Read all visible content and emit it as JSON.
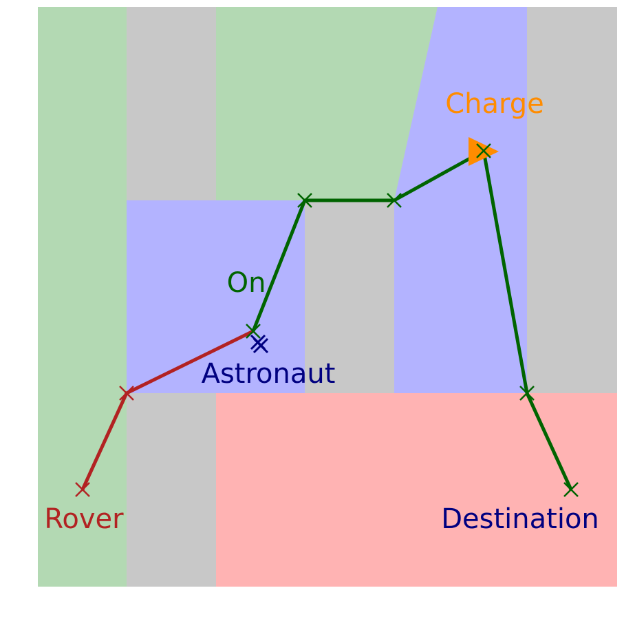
{
  "colors": {
    "green_zone": "#b3d9b3",
    "gray_zone": "#c8c8c8",
    "blue_zone": "#b3b3ff",
    "red_zone": "#ffb3b3",
    "rover_path": "#b22222",
    "astronaut_path": "#006400",
    "charge": "#ff8c00",
    "navy": "#000080"
  },
  "labels": {
    "rover": "Rover",
    "astronaut": "Astronaut",
    "on": "On",
    "charge": "Charge",
    "destination": "Destination"
  },
  "markers": {
    "rover_path_marker": "x-mark",
    "astronaut_path_marker": "x-mark",
    "astronaut_marker": "x-mark",
    "charge_marker": "triangle-right"
  }
}
